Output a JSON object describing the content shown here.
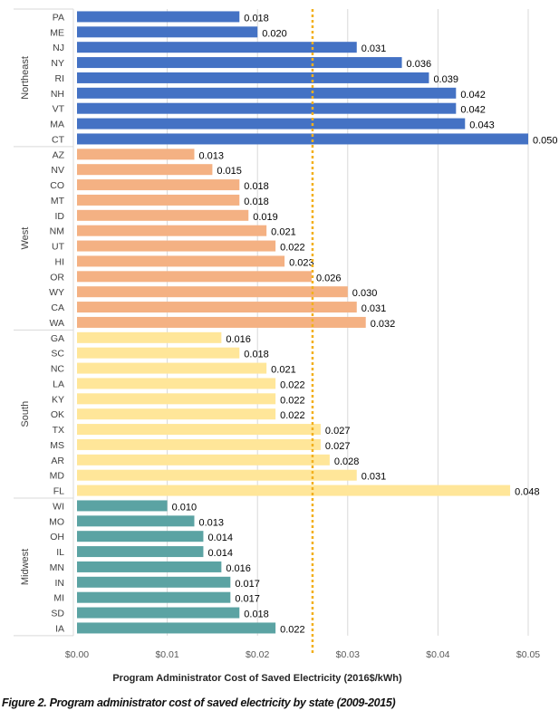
{
  "chart_data": {
    "type": "bar",
    "orientation": "horizontal",
    "xlabel": "Program Administrator Cost of Saved Electricity (2016$/kWh)",
    "xlim": [
      0,
      0.05
    ],
    "xticks": [
      "$0.00",
      "$0.01",
      "$0.02",
      "$0.03",
      "$0.04",
      "$0.05"
    ],
    "grid": "vertical",
    "reference_line": {
      "value": 0.0261,
      "style": "dotted",
      "color": "#F2B01E"
    },
    "groups": [
      {
        "name": "Northeast",
        "color": "#4472C4",
        "categories": [
          "PA",
          "ME",
          "NJ",
          "NY",
          "RI",
          "NH",
          "VT",
          "MA",
          "CT"
        ],
        "values": [
          0.018,
          0.02,
          0.031,
          0.036,
          0.039,
          0.042,
          0.042,
          0.043,
          0.05
        ],
        "labels": [
          "0.018",
          "0.020",
          "0.031",
          "0.036",
          "0.039",
          "0.042",
          "0.042",
          "0.043",
          "0.050"
        ]
      },
      {
        "name": "West",
        "color": "#F4B183",
        "categories": [
          "AZ",
          "NV",
          "CO",
          "MT",
          "ID",
          "NM",
          "UT",
          "HI",
          "OR",
          "WY",
          "CA",
          "WA"
        ],
        "values": [
          0.013,
          0.015,
          0.018,
          0.018,
          0.019,
          0.021,
          0.022,
          0.023,
          0.026,
          0.03,
          0.031,
          0.032
        ],
        "labels": [
          "0.013",
          "0.015",
          "0.018",
          "0.018",
          "0.019",
          "0.021",
          "0.022",
          "0.023",
          "0.026",
          "0.030",
          "0.031",
          "0.032"
        ]
      },
      {
        "name": "South",
        "color": "#FFE699",
        "categories": [
          "GA",
          "SC",
          "NC",
          "LA",
          "KY",
          "OK",
          "TX",
          "MS",
          "AR",
          "MD",
          "FL"
        ],
        "values": [
          0.016,
          0.018,
          0.021,
          0.022,
          0.022,
          0.022,
          0.027,
          0.027,
          0.028,
          0.031,
          0.048
        ],
        "labels": [
          "0.016",
          "0.018",
          "0.021",
          "0.022",
          "0.022",
          "0.022",
          "0.027",
          "0.027",
          "0.028",
          "0.031",
          "0.048"
        ]
      },
      {
        "name": "Midwest",
        "color": "#5BA3A3",
        "categories": [
          "WI",
          "MO",
          "OH",
          "IL",
          "MN",
          "IN",
          "MI",
          "SD",
          "IA"
        ],
        "values": [
          0.01,
          0.013,
          0.014,
          0.014,
          0.016,
          0.017,
          0.017,
          0.018,
          0.022
        ],
        "labels": [
          "0.010",
          "0.013",
          "0.014",
          "0.014",
          "0.016",
          "0.017",
          "0.017",
          "0.018",
          "0.022"
        ]
      }
    ]
  },
  "caption": "Figure 2. Program administrator cost of saved electricity by state (2009-2015)"
}
